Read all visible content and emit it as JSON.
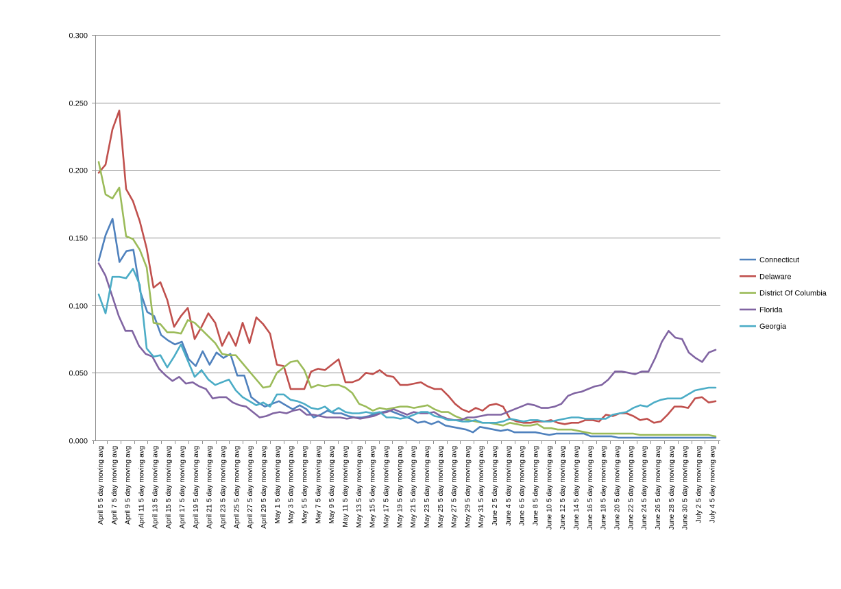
{
  "chart_data": {
    "type": "line",
    "title": "",
    "xlabel": "",
    "ylabel": "",
    "ylim": [
      0,
      0.3
    ],
    "y_ticks": [
      "0.000",
      "0.050",
      "0.100",
      "0.150",
      "0.200",
      "0.250",
      "0.300"
    ],
    "grid": "horizontal",
    "legend_position": "right",
    "x_tick_labels": [
      "April 5 5 day moving avg",
      "April 7 5 day moving avg",
      "April 9 5 day moving avg",
      "April 11 5 day moving avg",
      "April 13 5 day moving avg",
      "April 15 5 day moving avg",
      "April 17 5 day moving avg",
      "April 19 5 day moving avg",
      "April 21 5 day moving avg",
      "April 23 5 day moving avg",
      "April 25 5 day moving avg",
      "April 27 5 day moving avg",
      "April 29 5 day moving avg",
      "May 1 5 day moving avg",
      "May 3 5 day moving avg",
      "May 5 5 day moving avg",
      "May 7 5 day moving avg",
      "May 9 5 day moving avg",
      "May 11 5 day moving avg",
      "May 13 5 day moving avg",
      "May 15 5 day moving avg",
      "May 17 5 day moving avg",
      "May 19 5 day moving avg",
      "May 21 5 day moving avg",
      "May 23 5 day moving avg",
      "May 25 5 day moving avg",
      "May 27 5 day moving avg",
      "May 29 5 day moving avg",
      "May 31 5 day moving avg",
      "June 2 5 day moving avg",
      "June 4 5 day moving avg",
      "June 6 5 day moving avg",
      "June 8 5 day moving avg",
      "June 10 5 day moving avg",
      "June 12 5 day moving avg",
      "June 14 5 day moving avg",
      "June 16 5 day moving avg",
      "June 18 5 day moving avg",
      "June 20 5 day moving avg",
      "June 22 5 day moving avg",
      "June 24 5 day moving avg",
      "June 26 5 day moving avg",
      "June 28 5 day moving avg",
      "June 30 5 day moving avg",
      "July 2 5 day moving avg",
      "July 4 5 day moving avg"
    ],
    "series": [
      {
        "name": "Connecticut",
        "color": "#4F81BD",
        "values": [
          0.133,
          0.152,
          0.164,
          0.132,
          0.14,
          0.141,
          0.11,
          0.095,
          0.092,
          0.078,
          0.074,
          0.071,
          0.073,
          0.06,
          0.055,
          0.066,
          0.056,
          0.065,
          0.061,
          0.064,
          0.048,
          0.048,
          0.032,
          0.028,
          0.025,
          0.027,
          0.029,
          0.026,
          0.023,
          0.026,
          0.023,
          0.017,
          0.019,
          0.022,
          0.02,
          0.02,
          0.018,
          0.017,
          0.017,
          0.018,
          0.02,
          0.021,
          0.022,
          0.02,
          0.018,
          0.016,
          0.013,
          0.014,
          0.012,
          0.014,
          0.011,
          0.01,
          0.009,
          0.008,
          0.006,
          0.01,
          0.009,
          0.008,
          0.007,
          0.008,
          0.006,
          0.006,
          0.006,
          0.006,
          0.005,
          0.004,
          0.005,
          0.005,
          0.005,
          0.005,
          0.005,
          0.003,
          0.003,
          0.003,
          0.003,
          0.002,
          0.002,
          0.002,
          0.002,
          0.002,
          0.002,
          0.002,
          0.002,
          0.002,
          0.002,
          0.002,
          0.002,
          0.002,
          0.002,
          0.002
        ]
      },
      {
        "name": "Delaware",
        "color": "#C0504D",
        "values": [
          0.198,
          0.204,
          0.23,
          0.244,
          0.186,
          0.177,
          0.162,
          0.142,
          0.113,
          0.117,
          0.104,
          0.084,
          0.092,
          0.098,
          0.075,
          0.084,
          0.094,
          0.087,
          0.07,
          0.08,
          0.07,
          0.087,
          0.072,
          0.091,
          0.086,
          0.079,
          0.056,
          0.055,
          0.038,
          0.038,
          0.038,
          0.051,
          0.053,
          0.052,
          0.056,
          0.06,
          0.043,
          0.043,
          0.045,
          0.05,
          0.049,
          0.052,
          0.048,
          0.047,
          0.041,
          0.041,
          0.042,
          0.043,
          0.04,
          0.038,
          0.038,
          0.033,
          0.027,
          0.023,
          0.021,
          0.024,
          0.022,
          0.026,
          0.027,
          0.025,
          0.016,
          0.014,
          0.013,
          0.013,
          0.014,
          0.014,
          0.015,
          0.013,
          0.012,
          0.013,
          0.013,
          0.015,
          0.015,
          0.014,
          0.019,
          0.018,
          0.02,
          0.02,
          0.018,
          0.015,
          0.016,
          0.013,
          0.014,
          0.019,
          0.025,
          0.025,
          0.024,
          0.031,
          0.032,
          0.028,
          0.029
        ]
      },
      {
        "name": "District Of Columbia",
        "color": "#9BBB59",
        "values": [
          0.206,
          0.182,
          0.179,
          0.187,
          0.151,
          0.149,
          0.141,
          0.128,
          0.087,
          0.086,
          0.08,
          0.08,
          0.079,
          0.089,
          0.087,
          0.082,
          0.077,
          0.072,
          0.064,
          0.063,
          0.063,
          0.057,
          0.051,
          0.045,
          0.039,
          0.04,
          0.05,
          0.054,
          0.058,
          0.059,
          0.052,
          0.039,
          0.041,
          0.04,
          0.041,
          0.041,
          0.039,
          0.035,
          0.027,
          0.025,
          0.022,
          0.024,
          0.023,
          0.024,
          0.025,
          0.025,
          0.024,
          0.025,
          0.026,
          0.023,
          0.021,
          0.021,
          0.018,
          0.016,
          0.015,
          0.014,
          0.013,
          0.013,
          0.012,
          0.011,
          0.013,
          0.012,
          0.011,
          0.011,
          0.012,
          0.009,
          0.009,
          0.008,
          0.008,
          0.008,
          0.007,
          0.006,
          0.005,
          0.005,
          0.005,
          0.005,
          0.005,
          0.005,
          0.005,
          0.004,
          0.004,
          0.004,
          0.004,
          0.004,
          0.004,
          0.004,
          0.004,
          0.004,
          0.004,
          0.004,
          0.003
        ]
      },
      {
        "name": "Florida",
        "color": "#8064A2",
        "values": [
          0.131,
          0.122,
          0.107,
          0.092,
          0.081,
          0.081,
          0.07,
          0.064,
          0.062,
          0.053,
          0.048,
          0.044,
          0.047,
          0.042,
          0.043,
          0.04,
          0.038,
          0.031,
          0.032,
          0.032,
          0.028,
          0.026,
          0.025,
          0.021,
          0.017,
          0.018,
          0.02,
          0.021,
          0.02,
          0.022,
          0.023,
          0.019,
          0.019,
          0.018,
          0.017,
          0.017,
          0.017,
          0.016,
          0.017,
          0.016,
          0.017,
          0.018,
          0.02,
          0.021,
          0.023,
          0.021,
          0.019,
          0.021,
          0.02,
          0.02,
          0.021,
          0.018,
          0.016,
          0.015,
          0.015,
          0.017,
          0.017,
          0.018,
          0.019,
          0.019,
          0.019,
          0.021,
          0.023,
          0.025,
          0.027,
          0.026,
          0.024,
          0.024,
          0.025,
          0.027,
          0.033,
          0.035,
          0.036,
          0.038,
          0.04,
          0.041,
          0.045,
          0.051,
          0.051,
          0.05,
          0.049,
          0.051,
          0.051,
          0.061,
          0.073,
          0.081,
          0.076,
          0.075,
          0.065,
          0.061,
          0.058,
          0.065,
          0.067
        ]
      },
      {
        "name": "Georgia",
        "color": "#4BACC6",
        "values": [
          0.108,
          0.094,
          0.121,
          0.121,
          0.12,
          0.127,
          0.115,
          0.068,
          0.062,
          0.063,
          0.054,
          0.062,
          0.071,
          0.059,
          0.047,
          0.052,
          0.045,
          0.041,
          0.043,
          0.045,
          0.037,
          0.032,
          0.029,
          0.026,
          0.028,
          0.025,
          0.034,
          0.034,
          0.03,
          0.029,
          0.027,
          0.024,
          0.023,
          0.025,
          0.021,
          0.024,
          0.021,
          0.02,
          0.02,
          0.021,
          0.02,
          0.021,
          0.017,
          0.017,
          0.016,
          0.017,
          0.019,
          0.021,
          0.021,
          0.018,
          0.017,
          0.015,
          0.015,
          0.014,
          0.014,
          0.015,
          0.013,
          0.013,
          0.013,
          0.014,
          0.016,
          0.015,
          0.014,
          0.015,
          0.015,
          0.014,
          0.014,
          0.015,
          0.016,
          0.017,
          0.017,
          0.016,
          0.016,
          0.016,
          0.016,
          0.019,
          0.02,
          0.021,
          0.024,
          0.026,
          0.025,
          0.028,
          0.03,
          0.031,
          0.031,
          0.031,
          0.034,
          0.037,
          0.038,
          0.039,
          0.039
        ]
      }
    ]
  }
}
